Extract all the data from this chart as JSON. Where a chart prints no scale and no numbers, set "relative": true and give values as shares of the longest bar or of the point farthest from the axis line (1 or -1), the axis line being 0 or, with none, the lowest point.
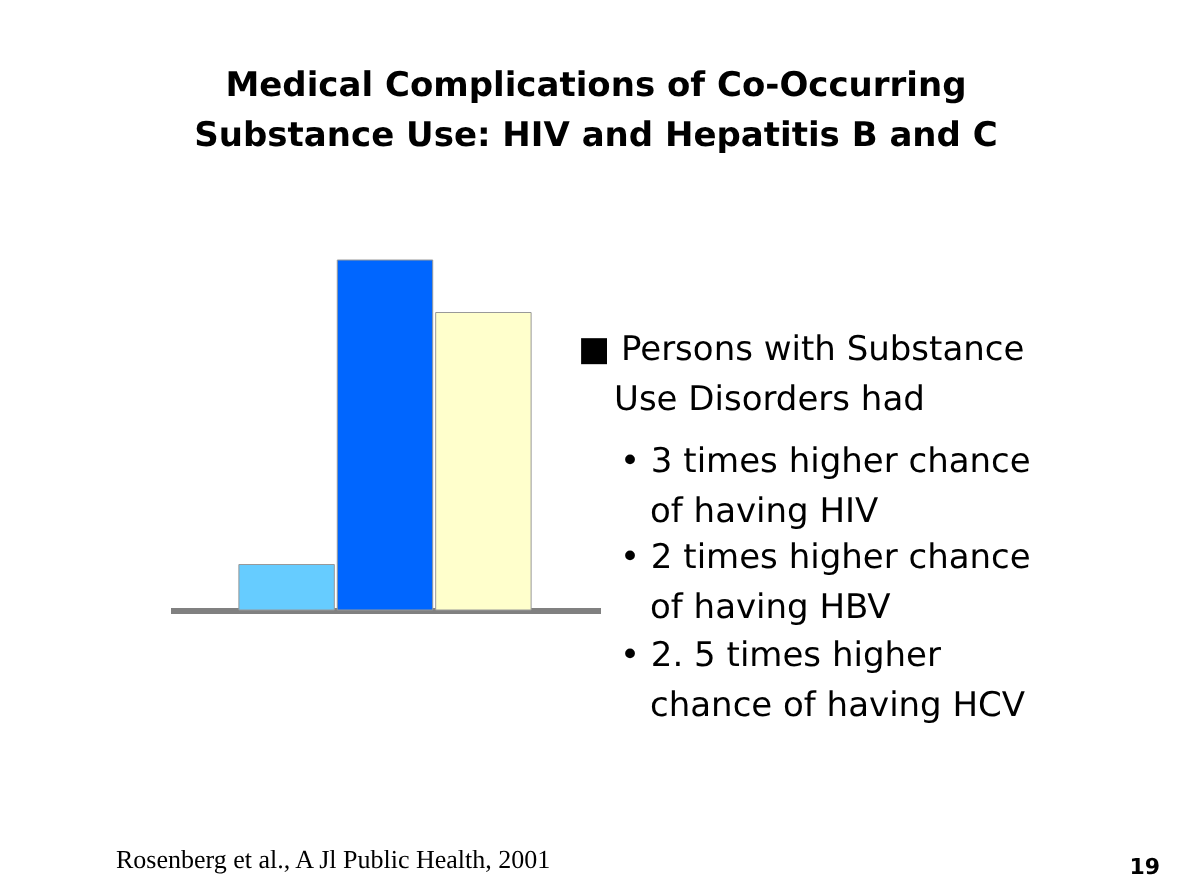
{
  "chart_data": {
    "type": "bar",
    "relative": true,
    "title": "Medical Complications of Co-Occurring Substance Use: HIV and Hepatitis B and C",
    "categories": [
      null,
      null,
      null
    ],
    "values": [
      0.13,
      1,
      0.85
    ],
    "colors": [
      "#66ccff",
      "#0066ff",
      "#ffffcc"
    ],
    "annotations": [
      "■ Persons with Substance Use Disorders had",
      "• 3 times higher chance of having HIV",
      "• 2 times higher chance of having HBV",
      "• 2. 5 times higher chance of having HCV",
      "Rosenberg et al., A Jl Public Health, 2001",
      "19"
    ]
  }
}
